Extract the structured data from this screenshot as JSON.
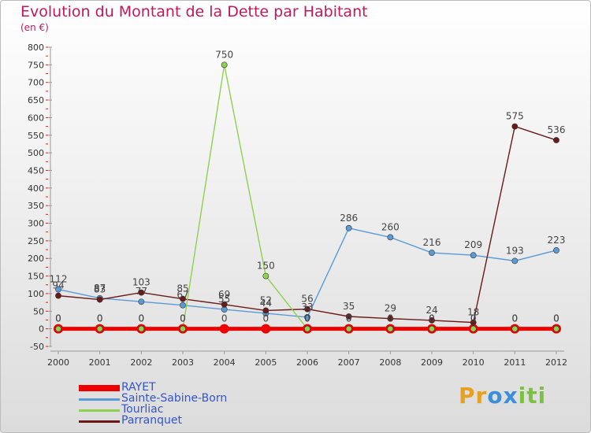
{
  "header": {
    "title": "Evolution du Montant de la Dette par Habitant",
    "unit_label": "(en €)"
  },
  "brand": {
    "letters": [
      "P",
      "r",
      "o",
      "x",
      "i",
      "t",
      "i"
    ],
    "colors": [
      "#e8a020",
      "#e8a020",
      "#3b8ed8",
      "#3b8ed8",
      "#7cc242",
      "#7cc242",
      "#7cc242"
    ]
  },
  "chart_data": {
    "type": "line",
    "title": "Evolution du Montant de la Dette par Habitant",
    "subtitle": "(en €)",
    "xlabel": "",
    "ylabel": "",
    "ylim": [
      -50,
      800
    ],
    "yticks": [
      -50,
      0,
      50,
      100,
      150,
      200,
      250,
      300,
      350,
      400,
      450,
      500,
      550,
      600,
      650,
      700,
      750,
      800
    ],
    "x": [
      "2000",
      "2001",
      "2002",
      "2003",
      "2004",
      "2005",
      "2006",
      "2007",
      "2008",
      "2009",
      "2010",
      "2011",
      "2012"
    ],
    "grid": false,
    "legend_position": "bottom-left",
    "series": [
      {
        "name": "RAYET",
        "color": "#ee0000",
        "values": [
          0,
          0,
          0,
          0,
          0,
          0,
          0,
          0,
          0,
          0,
          0,
          0,
          0
        ],
        "labels": [
          "0",
          "0",
          "0",
          "0",
          "0",
          "0",
          "0",
          "0",
          "0",
          "0",
          "0",
          "0",
          "0"
        ]
      },
      {
        "name": "Sainte-Sabine-Born",
        "color": "#5b9bd5",
        "values": [
          112,
          87,
          77,
          67,
          55,
          44,
          33,
          286,
          260,
          216,
          209,
          193,
          223
        ],
        "labels": [
          "112",
          "87",
          "77",
          "67",
          "55",
          "44",
          "33",
          "286",
          "260",
          "216",
          "209",
          "193",
          "223"
        ]
      },
      {
        "name": "Tourliac",
        "color": "#8ed14f",
        "values": [
          0,
          0,
          0,
          0,
          750,
          150,
          0,
          0,
          0,
          0,
          0,
          0,
          0
        ],
        "labels": [
          "0",
          "0",
          "0",
          "0",
          "750",
          "150",
          "0",
          "0",
          "0",
          "0",
          "0",
          "0",
          "0"
        ]
      },
      {
        "name": "Parranquet",
        "color": "#6b1a1a",
        "values": [
          94,
          83,
          103,
          85,
          69,
          52,
          56,
          35,
          29,
          24,
          18,
          575,
          536
        ],
        "labels": [
          "94",
          "83",
          "103",
          "85",
          "69",
          "52",
          "56",
          "35",
          "29",
          "24",
          "18",
          "575",
          "536"
        ]
      }
    ]
  }
}
